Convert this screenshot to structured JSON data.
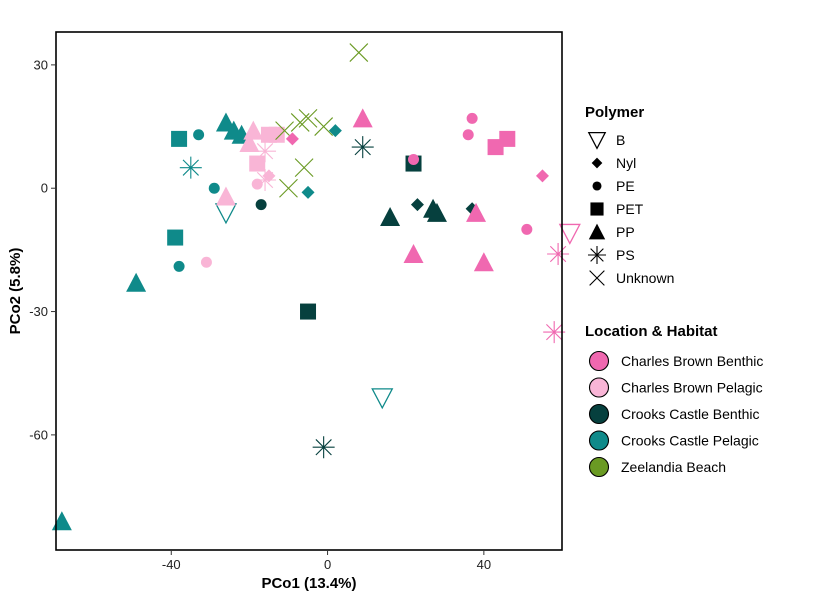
{
  "chart_data": {
    "type": "scatter",
    "xlabel": "PCo1 (13.4%)",
    "ylabel": "PCo2 (5.8%)",
    "xlim": [
      -69.5,
      60
    ],
    "ylim": [
      -88,
      38
    ],
    "xticks": [
      -40,
      0,
      40
    ],
    "yticks": [
      -60,
      -30,
      0,
      30
    ],
    "grid": false,
    "legends": {
      "polymer": {
        "title": "Polymer",
        "items": [
          {
            "label": "B",
            "shape": "triangle-down-open"
          },
          {
            "label": "Nyl",
            "shape": "diamond"
          },
          {
            "label": "PE",
            "shape": "circle"
          },
          {
            "label": "PET",
            "shape": "square"
          },
          {
            "label": "PP",
            "shape": "triangle"
          },
          {
            "label": "PS",
            "shape": "asterisk"
          },
          {
            "label": "Unknown",
            "shape": "cross"
          }
        ]
      },
      "location": {
        "title": "Location & Habitat",
        "items": [
          {
            "label": "Charles Brown Benthic",
            "color": "#f068b0"
          },
          {
            "label": "Charles Brown Pelagic",
            "color": "#f9b5d6"
          },
          {
            "label": "Crooks Castle Benthic",
            "color": "#06403e"
          },
          {
            "label": "Crooks Castle Pelagic",
            "color": "#0f8a8a"
          },
          {
            "label": "Zeelandia Beach",
            "color": "#6a9a23"
          }
        ]
      }
    },
    "points": [
      {
        "x": -68,
        "y": -81,
        "polymer": "PP",
        "location": "Crooks Castle Pelagic"
      },
      {
        "x": -49,
        "y": -23,
        "polymer": "PP",
        "location": "Crooks Castle Pelagic"
      },
      {
        "x": -39,
        "y": -12,
        "polymer": "PET",
        "location": "Crooks Castle Pelagic"
      },
      {
        "x": -38,
        "y": -19,
        "polymer": "PE",
        "location": "Crooks Castle Pelagic"
      },
      {
        "x": -38,
        "y": 12,
        "polymer": "PET",
        "location": "Crooks Castle Pelagic"
      },
      {
        "x": -35,
        "y": 5,
        "polymer": "PS",
        "location": "Crooks Castle Pelagic"
      },
      {
        "x": -33,
        "y": 13,
        "polymer": "PE",
        "location": "Crooks Castle Pelagic"
      },
      {
        "x": -31,
        "y": -18,
        "polymer": "PE",
        "location": "Charles Brown Pelagic"
      },
      {
        "x": -29,
        "y": 0,
        "polymer": "PE",
        "location": "Crooks Castle Pelagic"
      },
      {
        "x": -26,
        "y": -6,
        "polymer": "B",
        "location": "Crooks Castle Pelagic"
      },
      {
        "x": -26,
        "y": -2,
        "polymer": "PP",
        "location": "Charles Brown Pelagic"
      },
      {
        "x": -26,
        "y": 16,
        "polymer": "PP",
        "location": "Crooks Castle Pelagic"
      },
      {
        "x": -24,
        "y": 14,
        "polymer": "PP",
        "location": "Crooks Castle Pelagic"
      },
      {
        "x": -22,
        "y": 13,
        "polymer": "PP",
        "location": "Crooks Castle Pelagic"
      },
      {
        "x": -20,
        "y": 11,
        "polymer": "PP",
        "location": "Charles Brown Pelagic"
      },
      {
        "x": -19,
        "y": 14,
        "polymer": "PP",
        "location": "Charles Brown Pelagic"
      },
      {
        "x": -18,
        "y": 1,
        "polymer": "PE",
        "location": "Charles Brown Pelagic"
      },
      {
        "x": -18,
        "y": 6,
        "polymer": "PET",
        "location": "Charles Brown Pelagic"
      },
      {
        "x": -17,
        "y": -4,
        "polymer": "PE",
        "location": "Crooks Castle Benthic"
      },
      {
        "x": -16,
        "y": 9,
        "polymer": "PS",
        "location": "Charles Brown Pelagic"
      },
      {
        "x": -16,
        "y": 2,
        "polymer": "PS",
        "location": "Charles Brown Pelagic"
      },
      {
        "x": -15,
        "y": 3,
        "polymer": "Nyl",
        "location": "Charles Brown Pelagic"
      },
      {
        "x": -15,
        "y": 13,
        "polymer": "PET",
        "location": "Charles Brown Pelagic"
      },
      {
        "x": -13,
        "y": 13,
        "polymer": "PET",
        "location": "Charles Brown Pelagic"
      },
      {
        "x": -11,
        "y": 14,
        "polymer": "Unknown",
        "location": "Zeelandia Beach"
      },
      {
        "x": -10,
        "y": 0,
        "polymer": "Unknown",
        "location": "Zeelandia Beach"
      },
      {
        "x": -9,
        "y": 12,
        "polymer": "Nyl",
        "location": "Charles Brown Benthic"
      },
      {
        "x": -7,
        "y": 16,
        "polymer": "Unknown",
        "location": "Zeelandia Beach"
      },
      {
        "x": -6,
        "y": 5,
        "polymer": "Unknown",
        "location": "Zeelandia Beach"
      },
      {
        "x": -5,
        "y": -1,
        "polymer": "Nyl",
        "location": "Crooks Castle Pelagic"
      },
      {
        "x": -5,
        "y": 17,
        "polymer": "Unknown",
        "location": "Zeelandia Beach"
      },
      {
        "x": -5,
        "y": -30,
        "polymer": "PET",
        "location": "Crooks Castle Benthic"
      },
      {
        "x": -1,
        "y": -63,
        "polymer": "PS",
        "location": "Crooks Castle Benthic"
      },
      {
        "x": -1,
        "y": 15,
        "polymer": "Unknown",
        "location": "Zeelandia Beach"
      },
      {
        "x": 2,
        "y": 14,
        "polymer": "Nyl",
        "location": "Crooks Castle Pelagic"
      },
      {
        "x": 8,
        "y": 33,
        "polymer": "Unknown",
        "location": "Zeelandia Beach"
      },
      {
        "x": 9,
        "y": 17,
        "polymer": "PP",
        "location": "Charles Brown Benthic"
      },
      {
        "x": 9,
        "y": 10,
        "polymer": "PS",
        "location": "Crooks Castle Benthic"
      },
      {
        "x": 14,
        "y": -51,
        "polymer": "B",
        "location": "Crooks Castle Pelagic"
      },
      {
        "x": 16,
        "y": -7,
        "polymer": "PP",
        "location": "Crooks Castle Benthic"
      },
      {
        "x": 22,
        "y": -16,
        "polymer": "PP",
        "location": "Charles Brown Benthic"
      },
      {
        "x": 22,
        "y": 6,
        "polymer": "PET",
        "location": "Crooks Castle Benthic"
      },
      {
        "x": 22,
        "y": 7,
        "polymer": "PE",
        "location": "Charles Brown Benthic"
      },
      {
        "x": 23,
        "y": -4,
        "polymer": "Nyl",
        "location": "Crooks Castle Benthic"
      },
      {
        "x": 27,
        "y": -5,
        "polymer": "PP",
        "location": "Crooks Castle Benthic"
      },
      {
        "x": 28,
        "y": -6,
        "polymer": "PP",
        "location": "Crooks Castle Benthic"
      },
      {
        "x": 36,
        "y": 13,
        "polymer": "PE",
        "location": "Charles Brown Benthic"
      },
      {
        "x": 37,
        "y": 17,
        "polymer": "PE",
        "location": "Charles Brown Benthic"
      },
      {
        "x": 37,
        "y": -5,
        "polymer": "Nyl",
        "location": "Crooks Castle Benthic"
      },
      {
        "x": 38,
        "y": -6,
        "polymer": "PP",
        "location": "Charles Brown Benthic"
      },
      {
        "x": 40,
        "y": -18,
        "polymer": "PP",
        "location": "Charles Brown Benthic"
      },
      {
        "x": 43,
        "y": 10,
        "polymer": "PET",
        "location": "Charles Brown Benthic"
      },
      {
        "x": 46,
        "y": 12,
        "polymer": "PET",
        "location": "Charles Brown Benthic"
      },
      {
        "x": 51,
        "y": -10,
        "polymer": "PE",
        "location": "Charles Brown Benthic"
      },
      {
        "x": 55,
        "y": 3,
        "polymer": "Nyl",
        "location": "Charles Brown Benthic"
      },
      {
        "x": 58,
        "y": -35,
        "polymer": "PS",
        "location": "Charles Brown Benthic"
      },
      {
        "x": 59,
        "y": -16,
        "polymer": "PS",
        "location": "Charles Brown Benthic"
      },
      {
        "x": 62,
        "y": -11,
        "polymer": "B",
        "location": "Charles Brown Benthic"
      }
    ]
  }
}
